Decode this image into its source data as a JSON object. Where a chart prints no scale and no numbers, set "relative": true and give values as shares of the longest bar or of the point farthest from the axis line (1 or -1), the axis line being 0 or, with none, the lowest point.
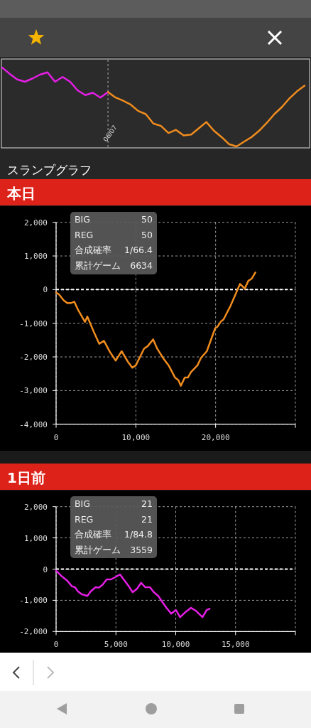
{
  "chart_data": [
    {
      "type": "line",
      "relative": true,
      "categories": [
        null,
        null,
        null,
        null,
        null,
        null,
        null,
        null,
        null,
        null,
        null,
        null,
        null,
        null,
        null,
        null,
        null,
        null,
        null,
        null,
        null,
        null,
        null,
        null,
        null,
        null,
        null,
        null,
        null,
        null,
        null,
        null,
        null,
        null,
        null,
        null,
        null,
        null,
        null,
        null,
        null
      ],
      "series": [
        {
          "color": "#e61ee6",
          "values": [
            1.0,
            0.92,
            0.85,
            0.82,
            0.86,
            0.91,
            0.94,
            0.82,
            0.88,
            0.82,
            0.71,
            0.65,
            0.68,
            0.62,
            0.69,
            null,
            null,
            null,
            null,
            null,
            null,
            null,
            null,
            null,
            null,
            null,
            null,
            null,
            null,
            null,
            null,
            null,
            null,
            null,
            null,
            null,
            null,
            null,
            null,
            null,
            null
          ]
        },
        {
          "color": "#f08c1e",
          "values": [
            null,
            null,
            null,
            null,
            null,
            null,
            null,
            null,
            null,
            null,
            null,
            null,
            null,
            null,
            0.69,
            0.62,
            0.58,
            0.53,
            0.45,
            0.41,
            0.29,
            0.26,
            0.17,
            0.21,
            0.14,
            0.15,
            0.23,
            0.31,
            0.2,
            0.12,
            0.03,
            0.0,
            0.06,
            0.12,
            0.2,
            0.3,
            0.41,
            0.5,
            0.61,
            0.7,
            0.77
          ]
        }
      ],
      "annotations": [
        "06/07"
      ]
    },
    {
      "type": "line",
      "title": "スランプグラフ",
      "subtitle": "本日",
      "grid": true,
      "x": [
        0,
        360,
        950,
        1400,
        1840,
        2280,
        2730,
        3620,
        3920,
        4660,
        5400,
        6000,
        6740,
        7480,
        8220,
        8960,
        9550,
        10000,
        11040,
        11480,
        12170,
        12670,
        13410,
        14150,
        14900,
        15340,
        15640,
        16140,
        16530,
        16910,
        17720,
        18160,
        18900,
        19940,
        20240,
        20680,
        20980,
        21870,
        22460,
        23060,
        23650,
        24100,
        24540,
        24990
      ],
      "series": [
        {
          "color": "#f08c1e",
          "values": [
            -90,
            -140,
            -320,
            -400,
            -400,
            -360,
            -590,
            -960,
            -800,
            -1220,
            -1610,
            -1520,
            -1850,
            -2110,
            -1830,
            -2130,
            -2320,
            -2250,
            -1750,
            -1680,
            -1480,
            -1750,
            -2030,
            -2270,
            -2610,
            -2690,
            -2860,
            -2610,
            -2610,
            -2450,
            -2250,
            -2030,
            -1830,
            -1150,
            -1100,
            -940,
            -890,
            -480,
            -160,
            170,
            30,
            260,
            330,
            510
          ]
        }
      ],
      "xlim": [
        0,
        30000
      ],
      "xticks": [
        0,
        {
          "value": 10000,
          "label": "10,000"
        },
        {
          "value": 20000,
          "label": "20,000"
        },
        {
          "value": 30000,
          "label": null
        }
      ],
      "ylim": [
        -4000,
        2000
      ],
      "yticks": [
        {
          "value": -4000,
          "label": "-4,000"
        },
        {
          "value": -3000,
          "label": "-3,000"
        },
        {
          "value": -2000,
          "label": "-2,000"
        },
        {
          "value": -1000,
          "label": "-1,000"
        },
        0,
        {
          "value": 1000,
          "label": "1,000"
        },
        {
          "value": 2000,
          "label": "2,000"
        }
      ],
      "ref_lines": [
        {
          "axis": "y",
          "value": 0,
          "color": "#ffffff",
          "line_style": "dashed"
        }
      ],
      "annotations": [
        "BIG",
        "50",
        "REG",
        "50",
        "合成確率",
        "1/66.4",
        "累計ゲーム",
        "6634"
      ]
    },
    {
      "type": "line",
      "title": "1日前",
      "grid": true,
      "x": [
        0,
        470,
        930,
        1320,
        1580,
        1820,
        2110,
        2610,
        2900,
        3300,
        3600,
        3890,
        4230,
        4580,
        4980,
        5340,
        5570,
        6070,
        6400,
        6760,
        7110,
        7450,
        7850,
        8140,
        8540,
        8890,
        9230,
        9620,
        10020,
        10360,
        10810,
        11270,
        11700,
        12240,
        12590,
        12830
      ],
      "series": [
        {
          "color": "#e61ee6",
          "values": [
            -50,
            -230,
            -370,
            -550,
            -580,
            -710,
            -800,
            -860,
            -710,
            -580,
            -590,
            -500,
            -330,
            -330,
            -250,
            -170,
            -290,
            -550,
            -740,
            -630,
            -440,
            -580,
            -580,
            -730,
            -860,
            -1060,
            -1240,
            -1430,
            -1310,
            -1540,
            -1380,
            -1240,
            -1340,
            -1540,
            -1310,
            -1270
          ]
        }
      ],
      "xlim": [
        0,
        20000
      ],
      "xticks": [
        0,
        {
          "value": 5000,
          "label": "5,000"
        },
        {
          "value": 10000,
          "label": "10,000"
        },
        {
          "value": 15000,
          "label": "15,000"
        },
        {
          "value": 20000,
          "label": null
        }
      ],
      "ylim": [
        -2000,
        2000
      ],
      "yticks": [
        {
          "value": -2000,
          "label": "-2,000"
        },
        {
          "value": -1000,
          "label": "-1,000"
        },
        0,
        {
          "value": 1000,
          "label": "1,000"
        },
        {
          "value": 2000,
          "label": "2,000"
        }
      ],
      "ref_lines": [
        {
          "axis": "y",
          "value": 0,
          "color": "#ffffff",
          "line_style": "dashed"
        }
      ],
      "annotations": [
        "BIG",
        "21",
        "REG",
        "21",
        "合成確率",
        "1/84.8",
        "累計ゲーム",
        "3559"
      ]
    }
  ]
}
